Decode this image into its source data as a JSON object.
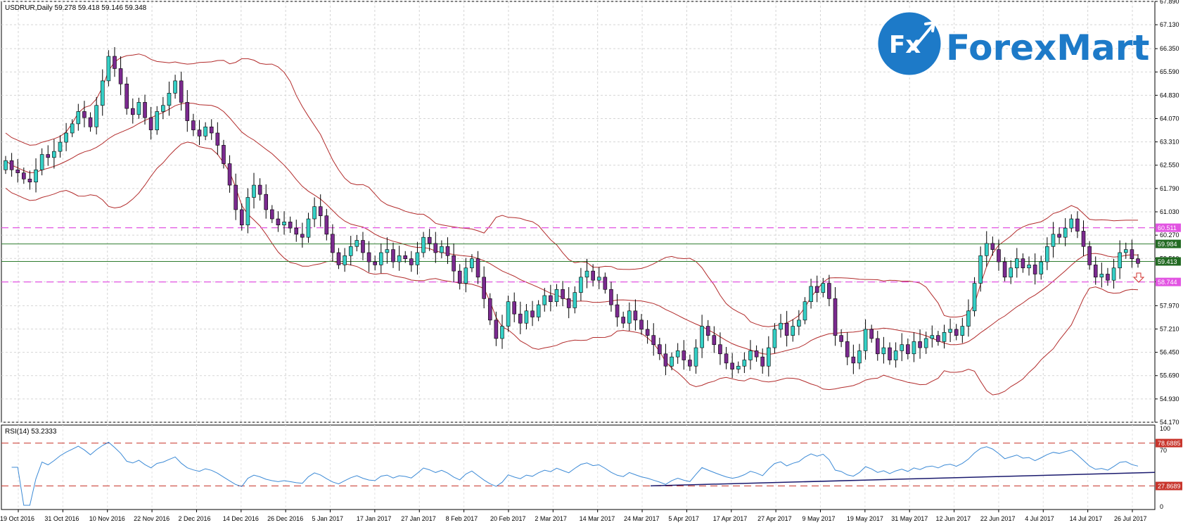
{
  "header": {
    "symbol_info": "USDRUR,Daily  59.278 59.418 59.146 59.348"
  },
  "logo": {
    "badge_text": "Fx",
    "wordmark": "ForexMart",
    "colors": {
      "primary": "#1d7ac8",
      "dark": "#12437a"
    }
  },
  "rsi": {
    "label": "RSI(14) 53.2333",
    "levels_scale": [
      "100",
      "70",
      "0"
    ],
    "upper_level": "78.6885",
    "lower_level": "27.8689"
  },
  "price_tags": {
    "resistance_magenta": "60.511",
    "green_upper": "59.984",
    "current": "59.413",
    "support_magenta": "58.744"
  },
  "colors": {
    "bull": "#35d0c6",
    "bear": "#7b2a8f",
    "bollinger": "#b22b2b",
    "magenta_line": "#e254e2",
    "green_line": "#2f7d2f",
    "rsi_line": "#3c8ad6",
    "rsi_trend": "#1a1a6e",
    "rsi_level": "#c8352c"
  },
  "chart_data": {
    "type": "candlestick",
    "title": "USDRUR,Daily",
    "y_axis_ticks": [
      "67.890",
      "67.130",
      "66.350",
      "65.590",
      "64.830",
      "64.070",
      "63.310",
      "62.550",
      "61.790",
      "61.030",
      "60.270",
      "59.510",
      "58.750",
      "57.970",
      "57.210",
      "56.450",
      "55.690",
      "54.930",
      "54.170"
    ],
    "ylim": [
      54.17,
      67.89
    ],
    "x_axis_ticks": [
      "19 Oct 2016",
      "31 Oct 2016",
      "10 Nov 2016",
      "22 Nov 2016",
      "2 Dec 2016",
      "14 Dec 2016",
      "26 Dec 2016",
      "5 Jan 2017",
      "17 Jan 2017",
      "27 Jan 2017",
      "8 Feb 2017",
      "20 Feb 2017",
      "2 Mar 2017",
      "14 Mar 2017",
      "24 Mar 2017",
      "5 Apr 2017",
      "17 Apr 2017",
      "27 Apr 2017",
      "9 May 2017",
      "19 May 2017",
      "31 May 2017",
      "12 Jun 2017",
      "22 Jun 2017",
      "4 Jul 2017",
      "14 Jul 2017",
      "26 Jul 2017"
    ],
    "close_series": [
      62.7,
      62.4,
      62.3,
      62.1,
      62.0,
      62.4,
      62.9,
      62.8,
      63.0,
      63.3,
      63.6,
      63.9,
      64.3,
      64.1,
      63.8,
      64.5,
      65.3,
      66.1,
      65.7,
      65.2,
      64.4,
      64.2,
      64.6,
      64.1,
      63.7,
      64.3,
      64.5,
      64.9,
      65.3,
      64.6,
      64.0,
      63.7,
      63.5,
      63.8,
      63.6,
      63.2,
      62.6,
      61.9,
      61.1,
      60.6,
      61.5,
      61.9,
      61.6,
      61.1,
      60.8,
      60.6,
      60.7,
      60.5,
      60.3,
      60.2,
      60.8,
      61.2,
      60.9,
      60.3,
      59.7,
      59.3,
      59.6,
      59.9,
      60.1,
      59.7,
      59.4,
      59.3,
      59.7,
      59.8,
      59.4,
      59.6,
      59.5,
      59.3,
      59.7,
      60.2,
      60.0,
      59.7,
      59.9,
      59.6,
      59.1,
      58.7,
      59.2,
      59.5,
      58.9,
      58.2,
      57.5,
      56.9,
      57.3,
      58.1,
      57.7,
      57.4,
      57.8,
      57.6,
      58.0,
      58.3,
      58.1,
      58.5,
      58.2,
      57.9,
      58.4,
      58.9,
      59.1,
      58.8,
      58.9,
      58.5,
      58.0,
      57.6,
      57.4,
      57.8,
      57.5,
      57.2,
      57.0,
      56.7,
      56.4,
      56.0,
      56.3,
      56.5,
      56.2,
      56.0,
      56.6,
      57.3,
      57.0,
      56.7,
      56.4,
      56.1,
      55.9,
      56.0,
      56.2,
      56.5,
      56.3,
      56.0,
      56.6,
      57.2,
      57.4,
      57.0,
      57.3,
      57.5,
      58.1,
      58.6,
      58.4,
      58.7,
      58.2,
      57.0,
      56.8,
      56.3,
      56.1,
      56.5,
      57.2,
      56.9,
      56.4,
      56.6,
      56.2,
      56.5,
      56.7,
      56.4,
      56.8,
      56.6,
      56.9,
      57.0,
      56.8,
      57.1,
      57.2,
      57.0,
      57.3,
      57.8,
      58.7,
      59.6,
      60.0,
      59.8,
      59.4,
      58.9,
      59.2,
      59.5,
      59.2,
      59.3,
      59.0,
      59.4,
      59.9,
      60.3,
      60.2,
      60.5,
      60.8,
      60.4,
      59.9,
      59.3,
      58.9,
      59.0,
      58.8,
      59.2,
      59.7,
      59.8,
      59.5,
      59.348
    ],
    "horizontal_levels": [
      60.511,
      59.984,
      59.413,
      58.744
    ],
    "indicators": [
      "Bollinger Bands",
      "RSI(14)"
    ]
  }
}
